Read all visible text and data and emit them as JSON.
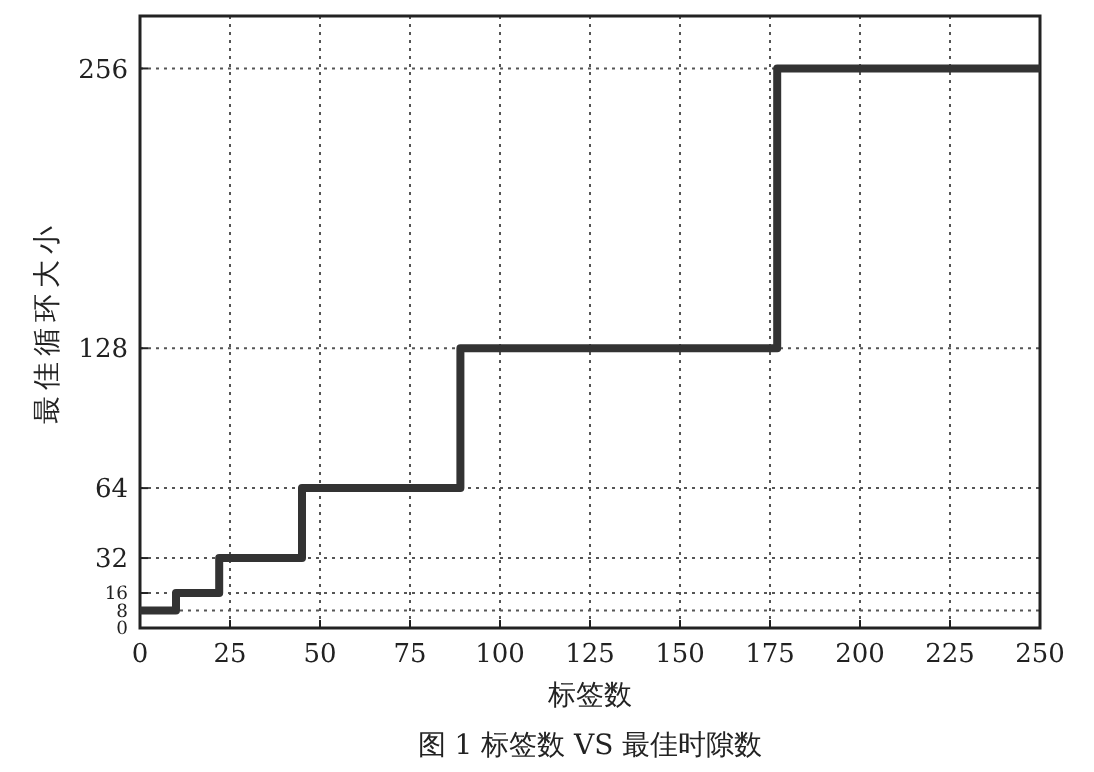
{
  "chart_data": {
    "type": "step",
    "title": "图 1 标签数 VS 最佳时隙数",
    "xlabel": "标签数",
    "ylabel": "最佳循环大小",
    "x": [
      0,
      10,
      22,
      45,
      89,
      177,
      250
    ],
    "series": [
      {
        "color": "#333333",
        "values": [
          8,
          16,
          32,
          64,
          128,
          256,
          256
        ]
      }
    ],
    "xlim": [
      0,
      250
    ],
    "ylim": [
      0,
      280
    ],
    "xticks": [
      0,
      25,
      50,
      75,
      100,
      125,
      150,
      175,
      200,
      225,
      250
    ],
    "yticks": [
      0,
      8,
      16,
      32,
      64,
      128,
      256
    ],
    "grid": true,
    "line_style": "solid"
  }
}
